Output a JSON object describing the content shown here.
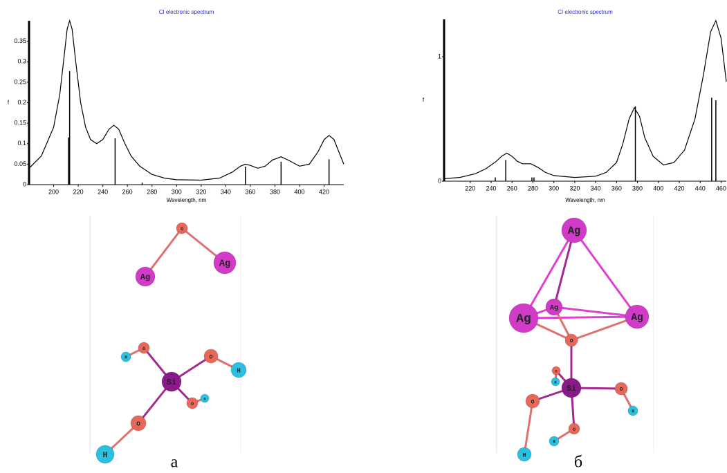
{
  "chart_data": [
    {
      "type": "line",
      "title": "CI electronic spectrum",
      "x_label": "Wavelength, nm",
      "y_label": "f",
      "x": [
        180,
        190,
        200,
        205,
        208,
        211,
        213,
        215,
        218,
        222,
        226,
        230,
        235,
        240,
        245,
        249,
        253,
        258,
        263,
        270,
        280,
        290,
        300,
        320,
        335,
        345,
        352,
        356,
        360,
        366,
        372,
        378,
        385,
        392,
        400,
        408,
        415,
        420,
        424,
        428,
        432,
        436
      ],
      "values": [
        0.04,
        0.07,
        0.14,
        0.22,
        0.3,
        0.38,
        0.4,
        0.38,
        0.3,
        0.2,
        0.14,
        0.11,
        0.1,
        0.11,
        0.135,
        0.145,
        0.135,
        0.1,
        0.07,
        0.045,
        0.025,
        0.016,
        0.012,
        0.011,
        0.016,
        0.03,
        0.045,
        0.05,
        0.047,
        0.04,
        0.045,
        0.06,
        0.068,
        0.058,
        0.045,
        0.05,
        0.08,
        0.11,
        0.12,
        0.11,
        0.08,
        0.05
      ],
      "stick_x": [
        212,
        213,
        250,
        272,
        356,
        385,
        424
      ],
      "stick_values": [
        0.115,
        0.277,
        0.113,
        0.005,
        0.044,
        0.056,
        0.062
      ],
      "xlim": [
        180,
        436
      ],
      "xticks": [
        200,
        220,
        240,
        260,
        280,
        300,
        320,
        340,
        360,
        380,
        400,
        420
      ],
      "ylim": [
        0,
        0.4
      ],
      "yticks": [
        0,
        0.05,
        0.1,
        0.15,
        0.2,
        0.25,
        0.3,
        0.35
      ],
      "color": "#000000"
    },
    {
      "type": "line",
      "title": "CI electronic spectrum",
      "x_label": "Wavelength, nm",
      "y_label": "f",
      "x": [
        195,
        210,
        225,
        235,
        245,
        250,
        255,
        260,
        265,
        270,
        278,
        285,
        292,
        300,
        320,
        340,
        350,
        360,
        366,
        372,
        377,
        382,
        387,
        395,
        405,
        415,
        425,
        435,
        443,
        450,
        455,
        460,
        465
      ],
      "values": [
        0.02,
        0.03,
        0.06,
        0.1,
        0.16,
        0.2,
        0.225,
        0.2,
        0.16,
        0.14,
        0.14,
        0.11,
        0.07,
        0.045,
        0.03,
        0.04,
        0.07,
        0.15,
        0.3,
        0.5,
        0.59,
        0.52,
        0.35,
        0.2,
        0.13,
        0.15,
        0.25,
        0.5,
        0.85,
        1.2,
        1.29,
        1.15,
        0.8
      ],
      "stick_x": [
        244,
        254,
        279,
        281,
        378,
        451,
        455
      ],
      "stick_values": [
        0.03,
        0.17,
        0.03,
        0.03,
        0.6,
        0.67,
        0.65
      ],
      "xlim": [
        195,
        465
      ],
      "xticks": [
        220,
        240,
        260,
        280,
        300,
        320,
        340,
        360,
        380,
        400,
        420,
        440,
        460
      ],
      "ylim": [
        0,
        1.3
      ],
      "yticks": [
        0,
        1
      ],
      "color": "#000000"
    }
  ],
  "molecules": [
    {
      "caption": "а",
      "atoms": [
        "O",
        "Ag",
        "Ag",
        "Si",
        "O",
        "O",
        "O",
        "O",
        "H",
        "H",
        "H",
        "H"
      ]
    },
    {
      "caption": "б",
      "atoms": [
        "Ag",
        "Ag",
        "Ag",
        "Ag",
        "O",
        "Si",
        "O",
        "O",
        "O",
        "O",
        "H",
        "H",
        "H",
        "H"
      ]
    }
  ]
}
